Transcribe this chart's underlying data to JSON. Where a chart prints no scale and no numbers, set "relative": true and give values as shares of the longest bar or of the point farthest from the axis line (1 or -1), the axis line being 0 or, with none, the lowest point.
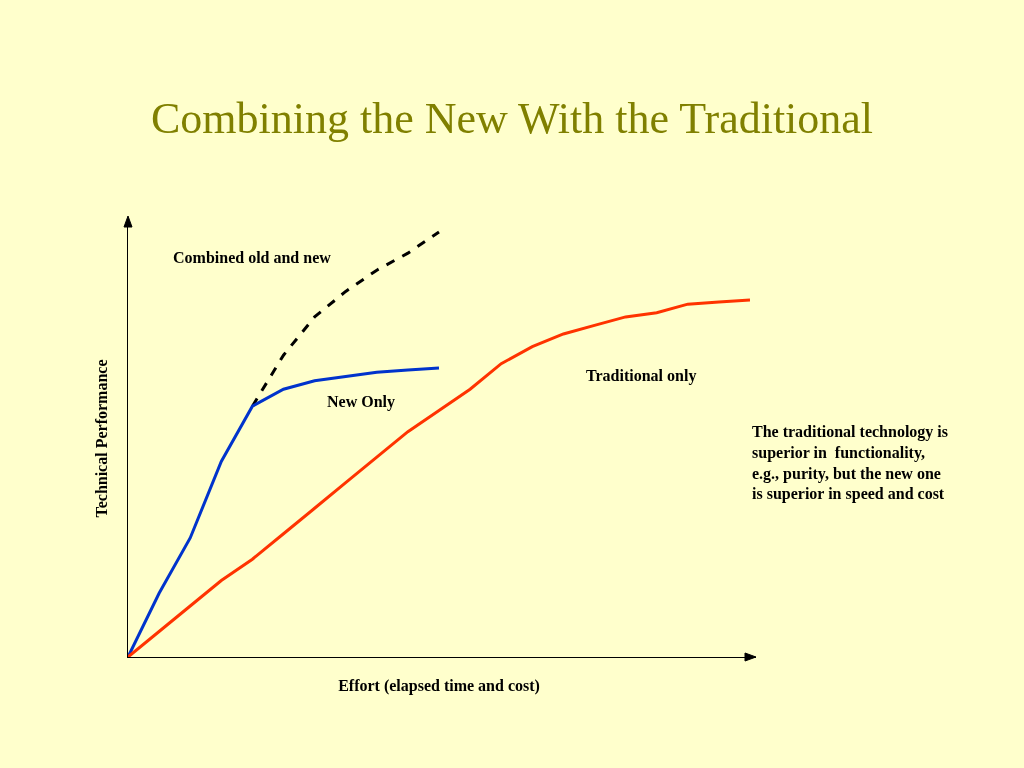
{
  "chart_data": {
    "type": "line",
    "title": "Combining the New With the Traditional",
    "xlabel": "Effort (elapsed time and cost)",
    "ylabel": "Technical Performance",
    "relative": true,
    "grid": false,
    "legend": false,
    "categories": [
      null,
      null,
      null,
      null,
      null,
      null,
      null,
      null,
      null,
      null,
      null,
      null,
      null,
      null,
      null,
      null,
      null,
      null,
      null,
      null,
      null
    ],
    "series": [
      {
        "name": "Combined old and new",
        "color": "#000000",
        "line_style": "dashed",
        "values": [
          null,
          null,
          null,
          null,
          0.59,
          0.71,
          0.8,
          0.86,
          0.91,
          0.95,
          1.0,
          null,
          null,
          null,
          null,
          null,
          null,
          null,
          null,
          null,
          null
        ]
      },
      {
        "name": "New Only",
        "color": "#0033cc",
        "line_style": "solid",
        "values": [
          0,
          0.15,
          0.28,
          0.46,
          0.59,
          0.63,
          0.65,
          0.66,
          0.67,
          0.675,
          0.68,
          null,
          null,
          null,
          null,
          null,
          null,
          null,
          null,
          null,
          null
        ]
      },
      {
        "name": "Traditional only",
        "color": "#ff3300",
        "line_style": "solid",
        "values": [
          0,
          0.06,
          0.12,
          0.18,
          0.23,
          0.29,
          0.35,
          0.41,
          0.47,
          0.53,
          0.58,
          0.63,
          0.69,
          0.73,
          0.76,
          0.78,
          0.8,
          0.81,
          0.83,
          0.835,
          0.84
        ]
      }
    ],
    "annotations": [
      "The traditional technology is\nsuperior in  functionality,\ne.g., purity, but the new one\nis superior in speed and cost"
    ]
  }
}
